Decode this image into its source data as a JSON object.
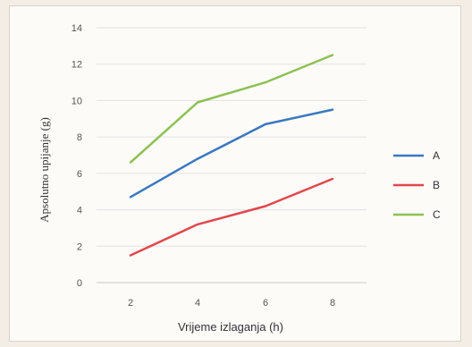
{
  "chart_data": {
    "type": "line",
    "title": "",
    "xlabel": "Vrijeme izlaganja (h)",
    "ylabel": "Apsolutno upijanje (g)",
    "x": [
      2,
      4,
      6,
      8
    ],
    "x_ticks": [
      "2",
      "4",
      "6",
      "8"
    ],
    "ylim": [
      0,
      14
    ],
    "y_ticks": [
      "0",
      "2",
      "4",
      "6",
      "8",
      "10",
      "12",
      "14"
    ],
    "grid": true,
    "legend_position": "right",
    "series": [
      {
        "name": "A",
        "color": "#3a78bf",
        "values": [
          4.7,
          6.8,
          8.7,
          9.5
        ]
      },
      {
        "name": "B",
        "color": "#e0474c",
        "values": [
          1.5,
          3.2,
          4.2,
          5.7
        ]
      },
      {
        "name": "C",
        "color": "#8cc152",
        "values": [
          6.6,
          9.9,
          11.0,
          12.5
        ]
      }
    ]
  }
}
